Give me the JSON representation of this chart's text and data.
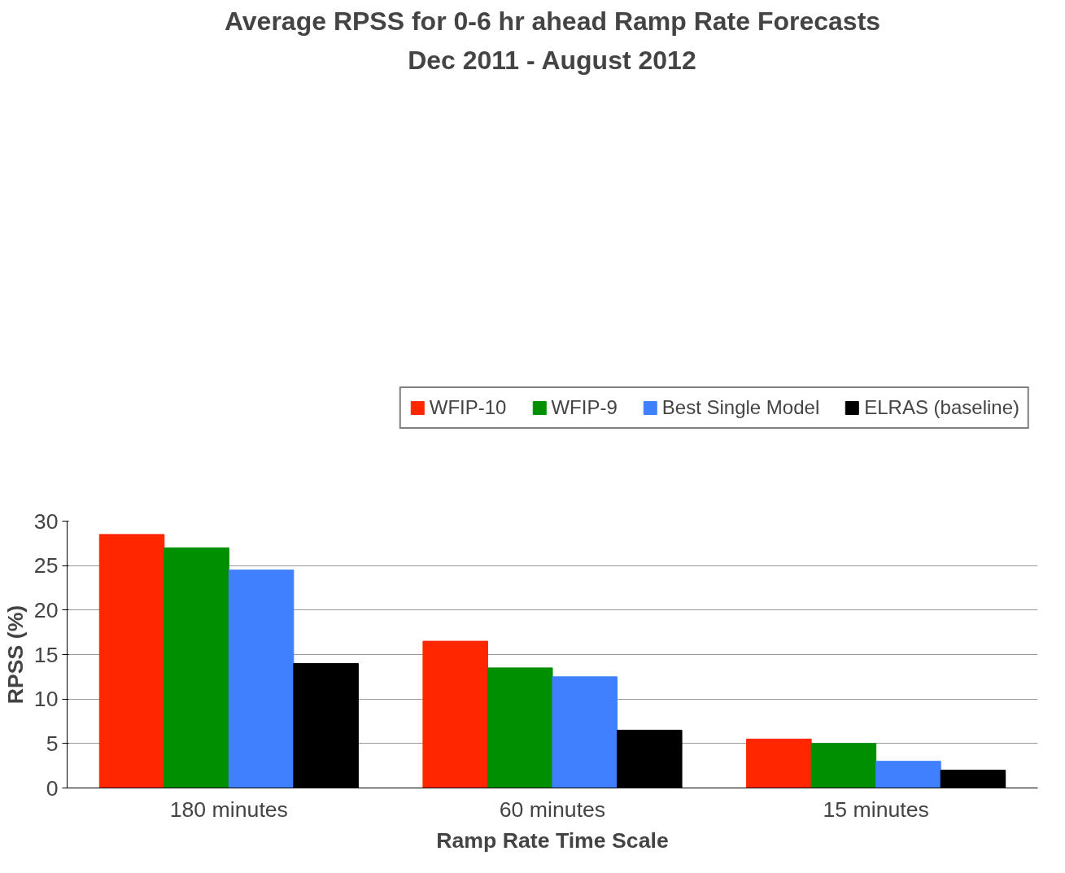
{
  "chart_data": {
    "type": "bar",
    "title": "Average RPSS for 0-6 hr ahead Ramp Rate Forecasts",
    "subtitle": "Dec 2011 - August 2012",
    "xlabel": "Ramp Rate Time Scale",
    "ylabel": "RPSS (%)",
    "categories": [
      "180 minutes",
      "60 minutes",
      "15 minutes"
    ],
    "series": [
      {
        "name": "WFIP-10",
        "color": "#ff2600",
        "values": [
          28.5,
          16.5,
          5.5
        ]
      },
      {
        "name": "WFIP-9",
        "color": "#008f00",
        "values": [
          27,
          13.5,
          5
        ]
      },
      {
        "name": "Best Single Model",
        "color": "#4080ff",
        "values": [
          24.5,
          12.5,
          3
        ]
      },
      {
        "name": "ELRAS (baseline)",
        "color": "#000000",
        "values": [
          14,
          6.5,
          2
        ]
      }
    ],
    "ylim": [
      0,
      30
    ],
    "yticks": [
      0,
      5,
      10,
      15,
      20,
      25,
      30
    ],
    "grid": "y",
    "legend": "top"
  }
}
